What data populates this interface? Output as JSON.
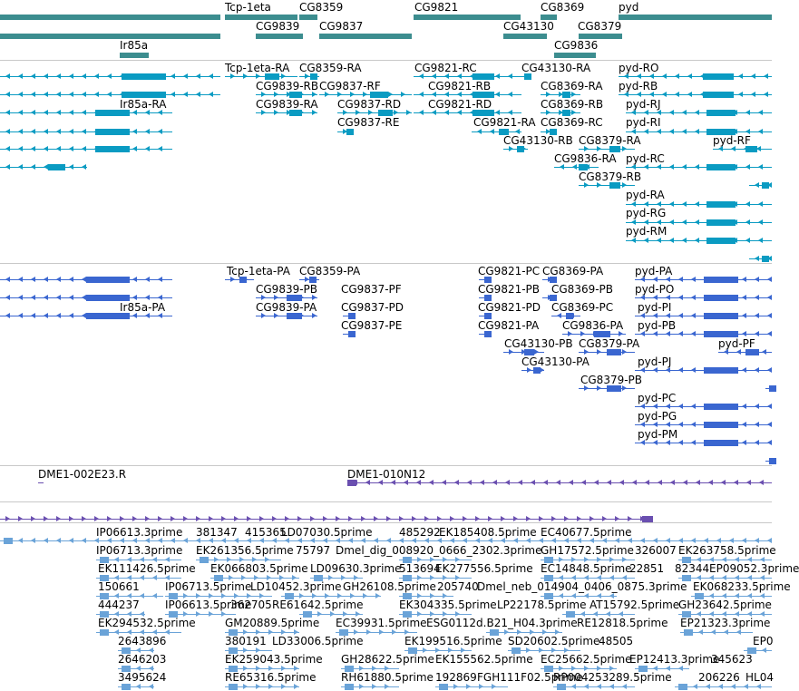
{
  "colors": {
    "gene": "#3c8d8f",
    "mrna": "#0a9bc2",
    "cds": "#3a66d0",
    "bac": "#6a4fb0",
    "est": "#6aa3d8",
    "separator": "#c8c8c8",
    "text": "#000000"
  },
  "tracks": {
    "gene": {
      "labels": [
        "Tcp-1eta",
        "CG8359",
        "CG9821",
        "CG8369",
        "pyd",
        "CG9839",
        "CG9837",
        "CG43130",
        "CG8379",
        "Ir85a",
        "CG9836"
      ]
    },
    "mrna": {
      "labels": [
        "Tcp-1eta-RA",
        "CG8359-RA",
        "CG9821-RC",
        "CG43130-RA",
        "pyd-RO",
        "CG9839-RB",
        "CG9837-RF",
        "CG9821-RB",
        "CG8369-RA",
        "pyd-RB",
        "Ir85a-RA",
        "CG9839-RA",
        "CG9837-RD",
        "CG9821-RD",
        "CG8369-RB",
        "pyd-RJ",
        "CG9837-RE",
        "CG9821-RA",
        "CG8369-RC",
        "pyd-RI",
        "CG43130-RB",
        "CG8379-RA",
        "pyd-RF",
        "CG9836-RA",
        "pyd-RC",
        "CG8379-RB",
        "pyd-RA",
        "pyd-RG",
        "pyd-RM"
      ]
    },
    "cds": {
      "labels": [
        "Tcp-1eta-PA",
        "CG8359-PA",
        "CG9821-PC",
        "CG8369-PA",
        "pyd-PA",
        "CG9839-PB",
        "CG9837-PF",
        "CG9821-PB",
        "CG8369-PB",
        "pyd-PO",
        "Ir85a-PA",
        "CG9839-PA",
        "CG9837-PD",
        "CG9821-PD",
        "CG8369-PC",
        "pyd-PI",
        "CG9837-PE",
        "CG9821-PA",
        "CG9836-PA",
        "pyd-PB",
        "CG43130-PB",
        "CG8379-PA",
        "pyd-PF",
        "CG43130-PA",
        "pyd-PJ",
        "CG8379-PB",
        "pyd-PC",
        "pyd-PG",
        "pyd-PM"
      ]
    },
    "bac": {
      "labels": [
        "DME1-002E23.R",
        "DME1-010N12"
      ]
    },
    "est": {
      "labels": [
        "IP06613.3prime",
        "381347",
        "415365",
        "LD07030.5prime",
        "485292",
        "EK185408.5prime",
        "EC40677.5prime",
        "IP06713.3prime",
        "EK261356.5prime",
        "75797",
        "Dmel_dig_008920_0666_2302.3prime",
        "GH17572.5prime",
        "326007",
        "EK263758.5prime",
        "EK111426.5prime",
        "EK066803.5prime",
        "LD09630.3prime",
        "513694",
        "EK277556.5prime",
        "EC14848.5prime",
        "22851",
        "82344",
        "EP09052.3prime",
        "150661",
        "IP06713.5prime",
        "LD10452.3prime",
        "GH26108.5prime",
        "205740",
        "Dmel_neb_014904_0406_0875.3prime",
        "EK068233.5prime",
        "444237",
        "IP06613.5prime",
        "362705",
        "RE61642.5prime",
        "EK304335.5prime",
        "LP22178.5prime",
        "AT15792.5prime",
        "GH23642.5prime",
        "EK294532.5prime",
        "GM20889.5prime",
        "EC39931.5prime",
        "ESG0112d.B21_H04.3prime",
        "RE12818.5prime",
        "EP21323.3prime",
        "2643896",
        "380191",
        "LD33006.5prime",
        "EK199516.5prime",
        "SD20602.5prime",
        "48505",
        "EP0",
        "2646203",
        "EK259043.5prime",
        "GH28622.5prime",
        "EK155562.5prime",
        "EC25662.5prime",
        "EP12413.3prime",
        "345623",
        "3495624",
        "RE65316.5prime",
        "RH61880.5prime",
        "192869",
        "FGH111F02.5prime",
        "RP004253289.5prime",
        "206226",
        "HL04"
      ]
    }
  }
}
